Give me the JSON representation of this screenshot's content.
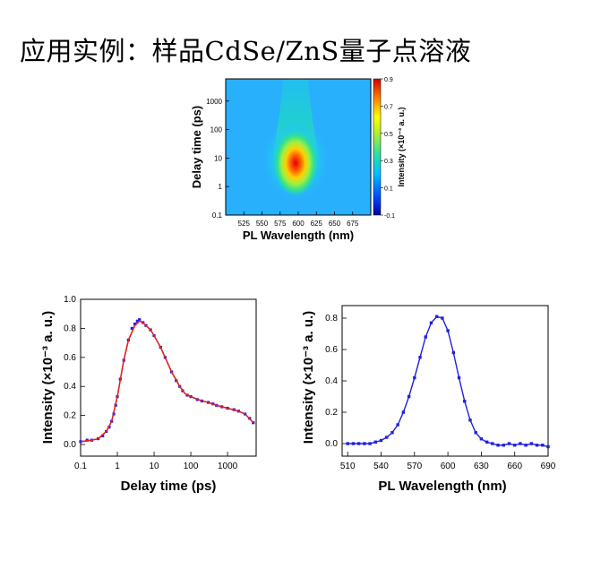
{
  "slide": {
    "title": "应用实例：样品CdSe/ZnS量子点溶液"
  },
  "chart_data": [
    {
      "type": "heatmap",
      "xlabel": "PL Wavelength (nm)",
      "ylabel": "Delay time (ps)",
      "x_ticks": [
        "525",
        "550",
        "575",
        "600",
        "625",
        "650",
        "675"
      ],
      "y_ticks": [
        "0.1",
        "1",
        "10",
        "100",
        "1000"
      ],
      "y_scale": "log",
      "xlim": [
        500,
        700
      ],
      "ylim": [
        0.1,
        6000
      ],
      "colorbar_label": "Intensity (×10⁻³ a. u.)",
      "colorbar_ticks": [
        "0.9",
        "0.7",
        "0.5",
        "0.3",
        "0.1",
        "-0.1"
      ],
      "colorbar_range": [
        -0.1,
        0.9
      ],
      "peak": {
        "wavelength": 592,
        "delay": 4,
        "intensity": 0.85
      },
      "grid": false
    },
    {
      "type": "scatter",
      "xlabel": "Delay time (ps)",
      "ylabel": "Intensity (×10⁻³ a. u.)",
      "x_scale": "log",
      "xlim": [
        0.1,
        6000
      ],
      "ylim": [
        -0.08,
        1.0
      ],
      "x_ticks": [
        "0.1",
        "1",
        "10",
        "100",
        "1000"
      ],
      "y_ticks": [
        "0.0",
        "0.2",
        "0.4",
        "0.6",
        "0.8",
        "1.0"
      ],
      "series": [
        {
          "style": "points",
          "color": "#1a1aff",
          "x": [
            0.1,
            0.15,
            0.2,
            0.3,
            0.4,
            0.5,
            0.6,
            0.7,
            0.8,
            0.9,
            1.0,
            1.2,
            1.5,
            2,
            2.5,
            3,
            3.5,
            4,
            5,
            6,
            8,
            10,
            15,
            20,
            30,
            40,
            50,
            60,
            80,
            100,
            150,
            200,
            300,
            400,
            500,
            700,
            1000,
            1500,
            2000,
            3000,
            4000,
            5000
          ],
          "y": [
            0.02,
            0.03,
            0.03,
            0.04,
            0.06,
            0.09,
            0.12,
            0.16,
            0.21,
            0.27,
            0.33,
            0.45,
            0.58,
            0.72,
            0.8,
            0.83,
            0.85,
            0.86,
            0.84,
            0.82,
            0.79,
            0.75,
            0.67,
            0.6,
            0.5,
            0.44,
            0.4,
            0.37,
            0.34,
            0.33,
            0.31,
            0.3,
            0.29,
            0.28,
            0.27,
            0.26,
            0.25,
            0.24,
            0.23,
            0.21,
            0.18,
            0.15
          ]
        },
        {
          "style": "line",
          "color": "#e02020",
          "x": [
            0.1,
            0.2,
            0.3,
            0.5,
            0.7,
            1.0,
            1.5,
            2,
            3,
            4,
            5,
            6,
            8,
            10,
            15,
            20,
            30,
            50,
            70,
            100,
            200,
            300,
            500,
            1000,
            2000,
            3000,
            5000
          ],
          "y": [
            0.02,
            0.03,
            0.04,
            0.09,
            0.16,
            0.33,
            0.58,
            0.72,
            0.82,
            0.85,
            0.84,
            0.82,
            0.79,
            0.75,
            0.67,
            0.6,
            0.5,
            0.4,
            0.35,
            0.33,
            0.3,
            0.29,
            0.27,
            0.25,
            0.23,
            0.21,
            0.15
          ]
        }
      ]
    },
    {
      "type": "line",
      "xlabel": "PL Wavelength (nm)",
      "ylabel": "Intensity (×10⁻³ a. u.)",
      "xlim": [
        505,
        690
      ],
      "ylim": [
        -0.08,
        0.88
      ],
      "x_ticks": [
        "510",
        "540",
        "570",
        "600",
        "630",
        "660",
        "690"
      ],
      "y_ticks": [
        "0.0",
        "0.2",
        "0.4",
        "0.6",
        "0.8"
      ],
      "series": [
        {
          "color": "#2020e0",
          "x": [
            510,
            515,
            520,
            525,
            530,
            535,
            540,
            545,
            550,
            555,
            560,
            565,
            570,
            575,
            580,
            585,
            590,
            595,
            600,
            605,
            610,
            615,
            620,
            625,
            630,
            635,
            640,
            645,
            650,
            655,
            660,
            665,
            670,
            675,
            680,
            685,
            690
          ],
          "y": [
            0.0,
            0.0,
            0.0,
            0.0,
            0.0,
            0.01,
            0.02,
            0.04,
            0.07,
            0.12,
            0.2,
            0.3,
            0.42,
            0.55,
            0.68,
            0.77,
            0.81,
            0.8,
            0.72,
            0.58,
            0.42,
            0.27,
            0.15,
            0.07,
            0.03,
            0.01,
            0.0,
            -0.01,
            -0.01,
            0.0,
            -0.01,
            0.0,
            -0.01,
            0.0,
            -0.01,
            -0.01,
            -0.02
          ]
        }
      ]
    }
  ]
}
